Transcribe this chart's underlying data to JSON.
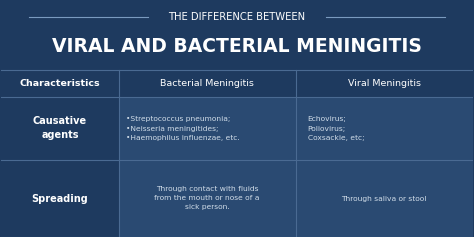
{
  "bg_color": "#1e3a5f",
  "header_title_line1": "THE DIFFERENCE BETWEEN",
  "header_title_line2": "VIRAL AND BACTERIAL MENINGITIS",
  "table_bg_dark": "#1e3a5f",
  "table_bg_light": "#2a4a72",
  "border_color": "#4a6a92",
  "text_color_white": "#ffffff",
  "text_color_light": "#d0dce8",
  "col_headers": [
    "Characteristics",
    "Bacterial Meningitis",
    "Viral Meningitis"
  ],
  "row1_label": "Causative\nagents",
  "row1_bacterial": "•Streptococcus pneumonia;\n•Neisseria meningitides;\n•Haemophilus influenzae, etc.",
  "row1_viral": "Echovirus;\nPoliovirus;\nCoxsackie, etc;",
  "row2_label": "Spreading",
  "row2_bacterial": "Through contact with fluids\nfrom the mouth or nose of a\nsick person.",
  "row2_viral": "Through saliva or stool",
  "line_color": "#7a9abf"
}
